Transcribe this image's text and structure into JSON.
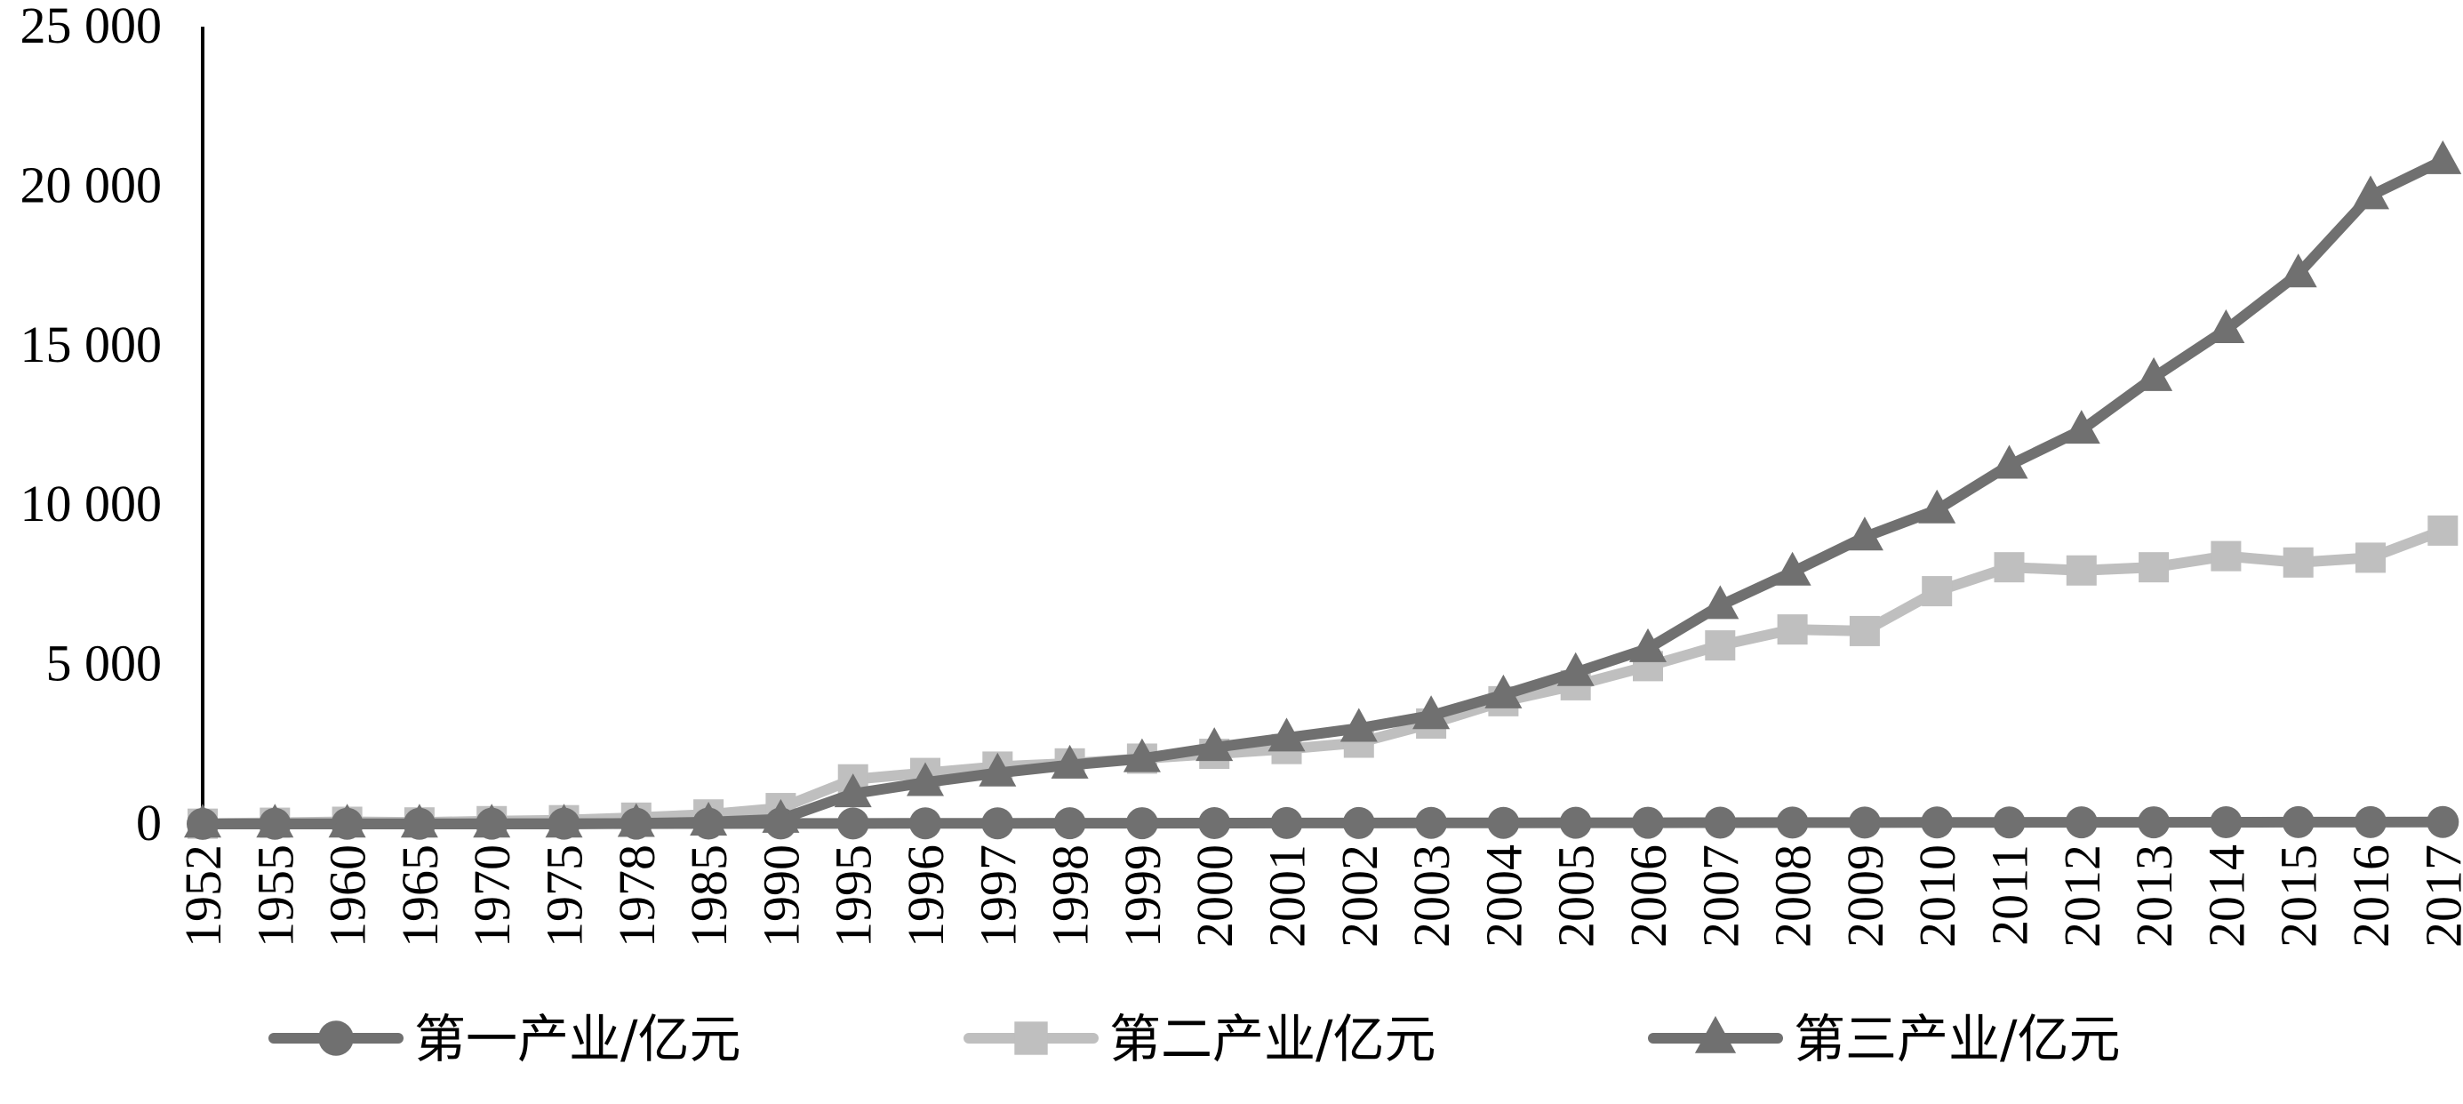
{
  "chart_data": {
    "type": "line",
    "title": "",
    "xlabel": "",
    "ylabel": "",
    "ylim": [
      0,
      25000
    ],
    "yticks": [
      0,
      5000,
      10000,
      15000,
      20000,
      25000
    ],
    "ytick_labels": [
      "0",
      "5 000",
      "10 000",
      "15 000",
      "20 000",
      "25 000"
    ],
    "grid": false,
    "legend_position": "bottom",
    "categories": [
      "1952",
      "1955",
      "1960",
      "1965",
      "1970",
      "1975",
      "1978",
      "1985",
      "1990",
      "1995",
      "1996",
      "1997",
      "1998",
      "1999",
      "2000",
      "2001",
      "2002",
      "2003",
      "2004",
      "2005",
      "2006",
      "2007",
      "2008",
      "2009",
      "2010",
      "2011",
      "2012",
      "2013",
      "2014",
      "2015",
      "2016",
      "2017"
    ],
    "series": [
      {
        "name": "第一产业/亿元",
        "marker": "circle",
        "color": "#707070",
        "values": [
          5,
          6,
          7,
          8,
          9,
          10,
          12,
          14,
          16,
          18,
          20,
          22,
          24,
          26,
          28,
          30,
          32,
          34,
          36,
          38,
          40,
          42,
          44,
          46,
          48,
          50,
          52,
          54,
          56,
          58,
          60,
          62
        ]
      },
      {
        "name": "第二产业/亿元",
        "marker": "square",
        "color": "#bfbfbf",
        "values": [
          10,
          40,
          70,
          50,
          90,
          120,
          200,
          300,
          500,
          1400,
          1600,
          1800,
          1900,
          2050,
          2200,
          2350,
          2550,
          3150,
          3850,
          4350,
          4950,
          5600,
          6100,
          6050,
          7300,
          8050,
          7950,
          8050,
          8400,
          8200,
          8350,
          9200
        ]
      },
      {
        "name": "第三产业/亿元",
        "marker": "triangle",
        "color": "#707070",
        "values": [
          0,
          0,
          0,
          0,
          0,
          0,
          20,
          60,
          150,
          950,
          1300,
          1600,
          1850,
          2050,
          2400,
          2700,
          3000,
          3400,
          4050,
          4750,
          5500,
          6850,
          7900,
          9000,
          9850,
          11250,
          12350,
          14000,
          15500,
          17250,
          19700,
          20800
        ]
      }
    ]
  }
}
